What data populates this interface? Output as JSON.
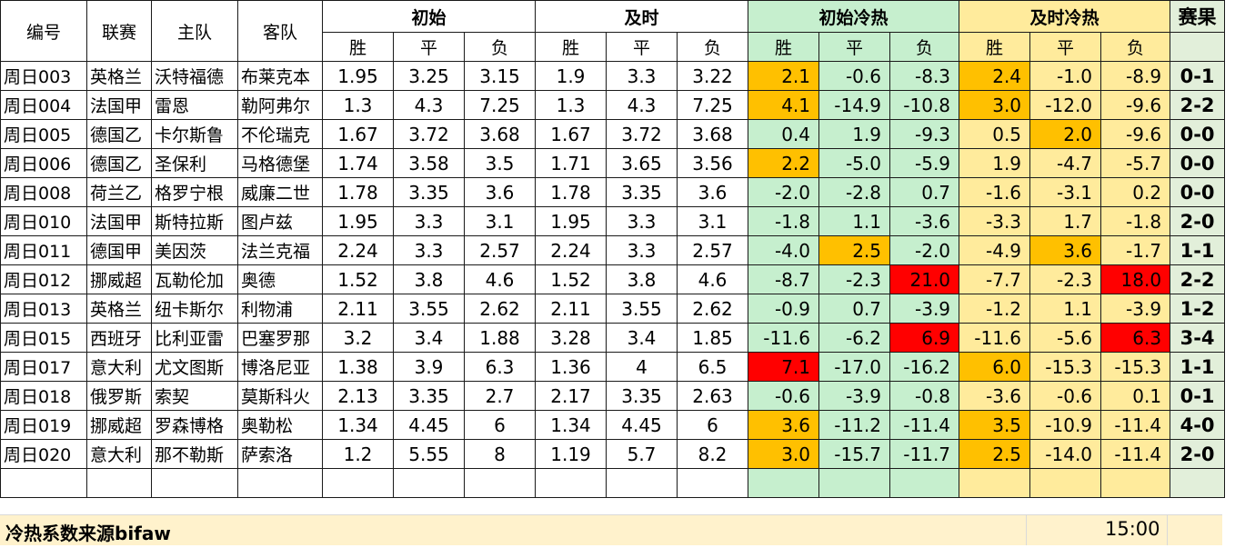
{
  "headers": {
    "id": "编号",
    "league": "联赛",
    "home": "主队",
    "away": "客队",
    "initial": "初始",
    "live": "及时",
    "initial_hotcold": "初始冷热",
    "live_hotcold": "及时冷热",
    "result": "赛果",
    "win": "胜",
    "draw": "平",
    "lose": "负"
  },
  "colors": {
    "green_fill": "#c6efce",
    "yellow_fill": "#ffeb9c",
    "orange_highlight": "#ffc000",
    "red_highlight": "#ff0000",
    "result_fill": "#e2efda",
    "footer_fill": "#fff2cc"
  },
  "rows": [
    {
      "id": "周日003",
      "league": "英格兰",
      "home": "沃特福德",
      "away": "布莱克本",
      "ini": [
        "1.95",
        "3.25",
        "3.15"
      ],
      "live": [
        "1.9",
        "3.3",
        "3.22"
      ],
      "ihc": [
        "2.1",
        "-0.6",
        "-8.3"
      ],
      "lhc": [
        "2.4",
        "-1.0",
        "-8.9"
      ],
      "result": "0-1"
    },
    {
      "id": "周日004",
      "league": "法国甲",
      "home": "雷恩",
      "away": "勒阿弗尔",
      "ini": [
        "1.3",
        "4.3",
        "7.25"
      ],
      "live": [
        "1.3",
        "4.3",
        "7.25"
      ],
      "ihc": [
        "4.1",
        "-14.9",
        "-10.8"
      ],
      "lhc": [
        "3.0",
        "-12.0",
        "-9.6"
      ],
      "result": "2-2"
    },
    {
      "id": "周日005",
      "league": "德国乙",
      "home": "卡尔斯鲁",
      "away": "不伦瑞克",
      "ini": [
        "1.67",
        "3.72",
        "3.68"
      ],
      "live": [
        "1.67",
        "3.72",
        "3.68"
      ],
      "ihc": [
        "0.4",
        "1.9",
        "-9.3"
      ],
      "lhc": [
        "0.5",
        "2.0",
        "-9.6"
      ],
      "result": "0-0"
    },
    {
      "id": "周日006",
      "league": "德国乙",
      "home": "圣保利",
      "away": "马格德堡",
      "ini": [
        "1.74",
        "3.58",
        "3.5"
      ],
      "live": [
        "1.71",
        "3.65",
        "3.56"
      ],
      "ihc": [
        "2.2",
        "-5.0",
        "-5.9"
      ],
      "lhc": [
        "1.9",
        "-4.7",
        "-5.7"
      ],
      "result": "0-0"
    },
    {
      "id": "周日008",
      "league": "荷兰乙",
      "home": "格罗宁根",
      "away": "威廉二世",
      "ini": [
        "1.78",
        "3.35",
        "3.6"
      ],
      "live": [
        "1.78",
        "3.35",
        "3.6"
      ],
      "ihc": [
        "-2.0",
        "-2.8",
        "0.7"
      ],
      "lhc": [
        "-1.6",
        "-3.1",
        "0.2"
      ],
      "result": "0-0"
    },
    {
      "id": "周日010",
      "league": "法国甲",
      "home": "斯特拉斯",
      "away": "图卢兹",
      "ini": [
        "1.95",
        "3.3",
        "3.1"
      ],
      "live": [
        "1.95",
        "3.3",
        "3.1"
      ],
      "ihc": [
        "-1.8",
        "1.1",
        "-3.6"
      ],
      "lhc": [
        "-3.3",
        "1.7",
        "-1.8"
      ],
      "result": "2-0"
    },
    {
      "id": "周日011",
      "league": "德国甲",
      "home": "美因茨",
      "away": "法兰克福",
      "ini": [
        "2.24",
        "3.3",
        "2.57"
      ],
      "live": [
        "2.24",
        "3.3",
        "2.57"
      ],
      "ihc": [
        "-4.0",
        "2.5",
        "-2.0"
      ],
      "lhc": [
        "-4.9",
        "3.6",
        "-1.7"
      ],
      "result": "1-1"
    },
    {
      "id": "周日012",
      "league": "挪威超",
      "home": "瓦勒伦加",
      "away": "奥德",
      "ini": [
        "1.52",
        "3.8",
        "4.6"
      ],
      "live": [
        "1.52",
        "3.8",
        "4.6"
      ],
      "ihc": [
        "-8.7",
        "-2.3",
        "21.0"
      ],
      "lhc": [
        "-7.7",
        "-2.3",
        "18.0"
      ],
      "result": "2-2"
    },
    {
      "id": "周日013",
      "league": "英格兰",
      "home": "纽卡斯尔",
      "away": "利物浦",
      "ini": [
        "2.11",
        "3.55",
        "2.62"
      ],
      "live": [
        "2.11",
        "3.55",
        "2.62"
      ],
      "ihc": [
        "-0.9",
        "0.7",
        "-3.9"
      ],
      "lhc": [
        "-1.2",
        "1.1",
        "-3.9"
      ],
      "result": "1-2"
    },
    {
      "id": "周日015",
      "league": "西班牙",
      "home": "比利亚雷",
      "away": "巴塞罗那",
      "ini": [
        "3.2",
        "3.4",
        "1.88"
      ],
      "live": [
        "3.28",
        "3.4",
        "1.85"
      ],
      "ihc": [
        "-11.6",
        "-6.2",
        "6.9"
      ],
      "lhc": [
        "-11.6",
        "-5.6",
        "6.3"
      ],
      "result": "3-4"
    },
    {
      "id": "周日017",
      "league": "意大利",
      "home": "尤文图斯",
      "away": "博洛尼亚",
      "ini": [
        "1.38",
        "3.9",
        "6.3"
      ],
      "live": [
        "1.36",
        "4",
        "6.5"
      ],
      "ihc": [
        "7.1",
        "-17.0",
        "-16.2"
      ],
      "lhc": [
        "6.0",
        "-15.3",
        "-15.3"
      ],
      "result": "1-1"
    },
    {
      "id": "周日018",
      "league": "俄罗斯",
      "home": "索契",
      "away": "莫斯科火",
      "ini": [
        "2.13",
        "3.35",
        "2.7"
      ],
      "live": [
        "2.17",
        "3.35",
        "2.63"
      ],
      "ihc": [
        "-0.6",
        "-3.9",
        "-0.8"
      ],
      "lhc": [
        "-3.6",
        "-0.6",
        "0.1"
      ],
      "result": "0-1"
    },
    {
      "id": "周日019",
      "league": "挪威超",
      "home": "罗森博格",
      "away": "奥勒松",
      "ini": [
        "1.34",
        "4.45",
        "6"
      ],
      "live": [
        "1.34",
        "4.45",
        "6"
      ],
      "ihc": [
        "3.6",
        "-11.2",
        "-11.4"
      ],
      "lhc": [
        "3.5",
        "-10.9",
        "-11.4"
      ],
      "result": "4-0"
    },
    {
      "id": "周日020",
      "league": "意大利",
      "home": "那不勒斯",
      "away": "萨索洛",
      "ini": [
        "1.2",
        "5.55",
        "8"
      ],
      "live": [
        "1.19",
        "5.7",
        "8.2"
      ],
      "ihc": [
        "3.0",
        "-15.7",
        "-11.7"
      ],
      "lhc": [
        "2.5",
        "-14.0",
        "-11.4"
      ],
      "result": "2-0"
    }
  ],
  "highlights": {
    "0": {
      "ihc": [
        "o",
        "",
        ""
      ],
      "lhc": [
        "o",
        "",
        ""
      ]
    },
    "1": {
      "ihc": [
        "o",
        "",
        ""
      ],
      "lhc": [
        "o",
        "",
        ""
      ]
    },
    "2": {
      "ihc": [
        "",
        "",
        ""
      ],
      "lhc": [
        "",
        "o",
        ""
      ]
    },
    "3": {
      "ihc": [
        "o",
        "",
        ""
      ],
      "lhc": [
        "",
        "",
        ""
      ]
    },
    "6": {
      "ihc": [
        "",
        "o",
        ""
      ],
      "lhc": [
        "",
        "o",
        ""
      ]
    },
    "7": {
      "ihc": [
        "",
        "",
        "r"
      ],
      "lhc": [
        "",
        "",
        "r"
      ]
    },
    "9": {
      "ihc": [
        "",
        "",
        "r"
      ],
      "lhc": [
        "",
        "",
        "r"
      ]
    },
    "10": {
      "ihc": [
        "r",
        "",
        ""
      ],
      "lhc": [
        "o",
        "",
        ""
      ]
    },
    "12": {
      "ihc": [
        "o",
        "",
        ""
      ],
      "lhc": [
        "o",
        "",
        ""
      ]
    },
    "13": {
      "ihc": [
        "o",
        "",
        ""
      ],
      "lhc": [
        "o",
        "",
        ""
      ]
    }
  },
  "footer": {
    "source": "冷热系数来源bifaw",
    "time": "15:00"
  }
}
